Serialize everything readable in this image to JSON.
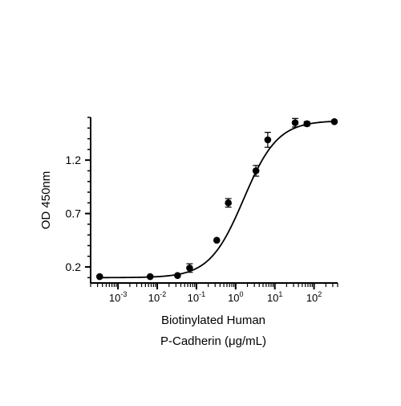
{
  "chart_data": {
    "type": "scatter",
    "xscale": "log",
    "xlabel": [
      "Biotinylated Human",
      "P-Cadherin (μg/mL)"
    ],
    "ylabel": "OD 450nm",
    "xlim": [
      0.0002,
      400
    ],
    "ylim": [
      0.05,
      1.6
    ],
    "y_ticks": [
      0.2,
      0.7,
      1.2
    ],
    "y_tick_labels": [
      "0.2",
      "0.7",
      "1.2"
    ],
    "x_major_ticks": [
      0.001,
      0.01,
      0.1,
      1,
      10,
      100
    ],
    "x_tick_labels": [
      {
        "base": "10",
        "exp": "-3"
      },
      {
        "base": "10",
        "exp": "-2"
      },
      {
        "base": "10",
        "exp": "-1"
      },
      {
        "base": "10",
        "exp": "0"
      },
      {
        "base": "10",
        "exp": "1"
      },
      {
        "base": "10",
        "exp": "2"
      }
    ],
    "grid": false,
    "legend": false,
    "marker_color": "#000000",
    "points": [
      {
        "x": 0.00034,
        "y": 0.11,
        "err": 0.005
      },
      {
        "x": 0.0066,
        "y": 0.11,
        "err": 0.006
      },
      {
        "x": 0.033,
        "y": 0.12,
        "err": 0.01
      },
      {
        "x": 0.067,
        "y": 0.19,
        "err": 0.04
      },
      {
        "x": 0.33,
        "y": 0.45,
        "err": 0.01
      },
      {
        "x": 0.65,
        "y": 0.8,
        "err": 0.04
      },
      {
        "x": 3.3,
        "y": 1.1,
        "err": 0.05
      },
      {
        "x": 6.6,
        "y": 1.39,
        "err": 0.07
      },
      {
        "x": 33,
        "y": 1.55,
        "err": 0.04
      },
      {
        "x": 66,
        "y": 1.54,
        "err": 0.02
      },
      {
        "x": 330,
        "y": 1.56,
        "err": 0.01
      }
    ],
    "fit_curve": {
      "model": "4PL",
      "bottom": 0.1,
      "top": 1.57,
      "ec50": 1.6,
      "hill": 1.0
    }
  }
}
